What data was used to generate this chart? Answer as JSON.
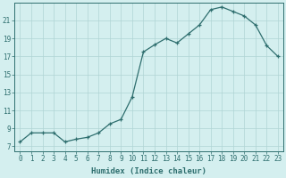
{
  "x": [
    0,
    1,
    2,
    3,
    4,
    5,
    6,
    7,
    8,
    9,
    10,
    11,
    12,
    13,
    14,
    15,
    16,
    17,
    18,
    19,
    20,
    21,
    22,
    23
  ],
  "y": [
    7.5,
    8.5,
    8.5,
    8.5,
    7.5,
    7.8,
    8.0,
    8.5,
    9.5,
    10.0,
    12.5,
    17.5,
    18.3,
    19.0,
    18.5,
    19.5,
    20.5,
    22.2,
    22.5,
    22.0,
    21.5,
    20.5,
    18.2,
    17.0
  ],
  "xlabel": "Humidex (Indice chaleur)",
  "xlim": [
    -0.5,
    23.5
  ],
  "ylim": [
    6.5,
    23
  ],
  "xticks": [
    0,
    1,
    2,
    3,
    4,
    5,
    6,
    7,
    8,
    9,
    10,
    11,
    12,
    13,
    14,
    15,
    16,
    17,
    18,
    19,
    20,
    21,
    22,
    23
  ],
  "yticks": [
    7,
    9,
    11,
    13,
    15,
    17,
    19,
    21
  ],
  "line_color": "#2e6e6e",
  "marker": "+",
  "bg_color": "#d4efef",
  "grid_color": "#b0d4d4",
  "axis_color": "#2e6e6e",
  "label_fontsize": 6.5,
  "tick_fontsize": 5.5
}
